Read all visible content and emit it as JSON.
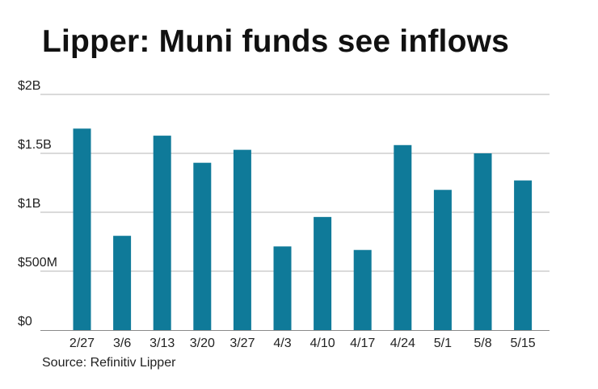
{
  "title": "Lipper: Muni funds see inflows",
  "source": "Source: Refinitiv Lipper",
  "colors": {
    "bar": "#0f7a99",
    "grid": "#b5b5b5",
    "axis": "#8a8a8a",
    "text": "#222222"
  },
  "chart_data": {
    "type": "bar",
    "title": "Lipper: Muni funds see inflows",
    "xlabel": "",
    "ylabel": "",
    "categories": [
      "2/27",
      "3/6",
      "3/13",
      "3/20",
      "3/27",
      "4/3",
      "4/10",
      "4/17",
      "4/24",
      "5/1",
      "5/8",
      "5/15"
    ],
    "values": [
      1.71,
      0.8,
      1.65,
      1.42,
      1.53,
      0.71,
      0.96,
      0.68,
      1.57,
      1.19,
      1.5,
      1.27
    ],
    "units": "billions of dollars",
    "ylim": [
      0,
      2
    ],
    "yticks": [
      {
        "value": 0,
        "label": "$0"
      },
      {
        "value": 0.5,
        "label": "$500M"
      },
      {
        "value": 1,
        "label": "$1B"
      },
      {
        "value": 1.5,
        "label": "$1.5B"
      },
      {
        "value": 2,
        "label": "$2B"
      }
    ],
    "grid": true,
    "legend": "none"
  }
}
